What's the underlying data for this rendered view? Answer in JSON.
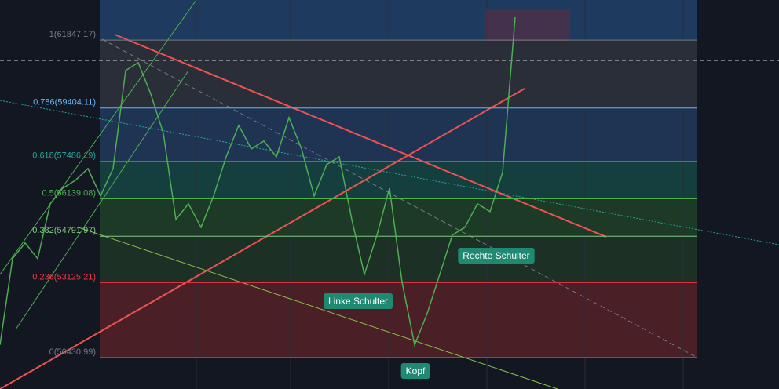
{
  "chart_data": {
    "type": "line",
    "values": [
      50886,
      53987,
      54551,
      53987,
      55961,
      56524,
      56806,
      57229,
      56243,
      57229,
      60753,
      61035,
      59907,
      58498,
      55397,
      55961,
      55115,
      56243,
      57652,
      58780,
      57934,
      58216,
      57652,
      59062,
      57934,
      56243,
      57370,
      57652,
      55397,
      53424,
      54833,
      56524,
      53142,
      50886,
      52014,
      53424,
      54833,
      55115,
      55961,
      55679,
      57088,
      62670
    ],
    "color": "#4caf50",
    "ylim": [
      49300,
      63290
    ],
    "yticks": [
      {
        "value": 61847.17,
        "label": "1(61847.17)"
      },
      {
        "value": 59404.11,
        "label": "0.786(59404.11)"
      },
      {
        "value": 57486.19,
        "label": "0.618(57486.19)"
      },
      {
        "value": 56139.08,
        "label": "0.5(56139.08)"
      },
      {
        "value": 54791.97,
        "label": "0.382(54791.97)"
      },
      {
        "value": 53125.21,
        "label": "0.236(53125.21)"
      },
      {
        "value": 50430.99,
        "label": "0(50430.99)"
      }
    ],
    "tick_colors": [
      "#787b86",
      "#64b5f6",
      "#26a69a",
      "#4caf50",
      "#81c784",
      "#f23645",
      "#787b86"
    ],
    "annotations": [
      "Linke Schulter",
      "Kopf",
      "Rechte Schulter"
    ]
  }
}
